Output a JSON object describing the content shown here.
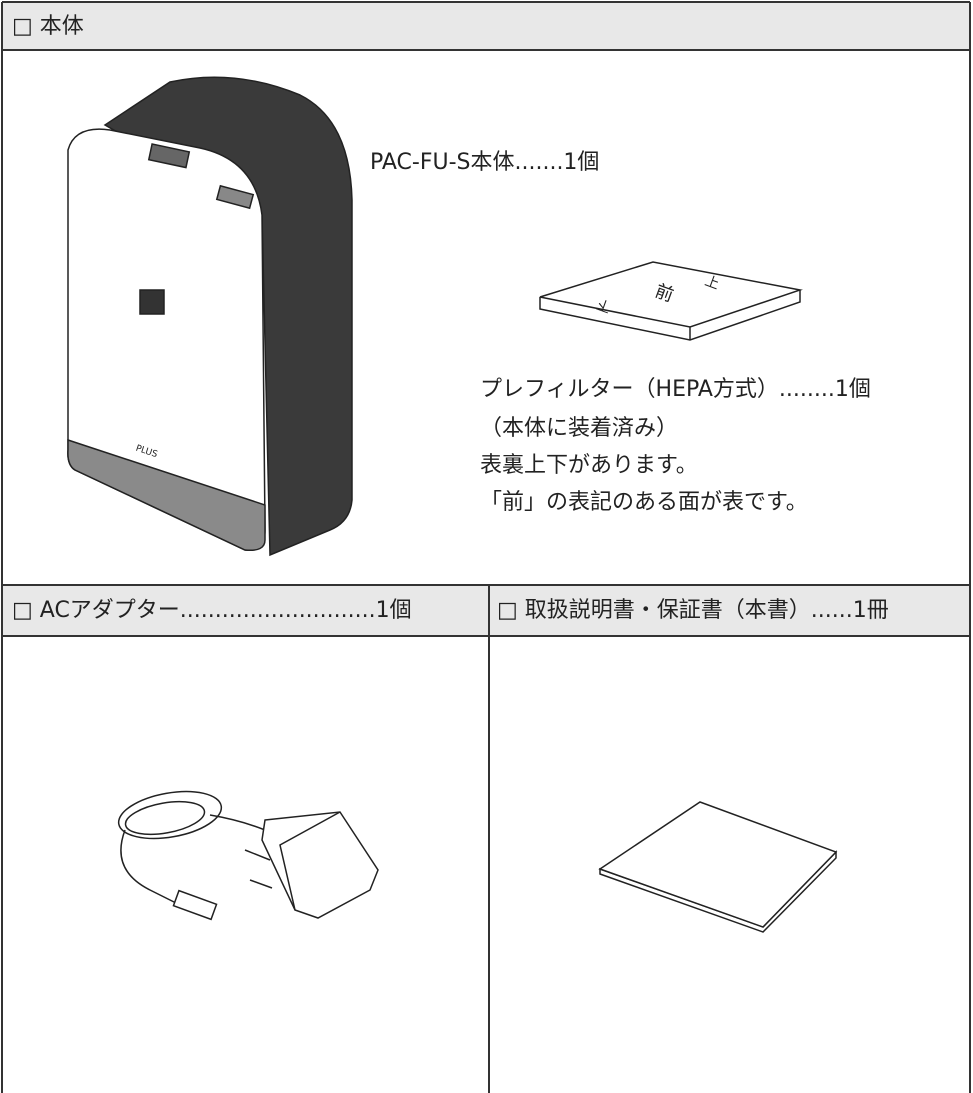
{
  "main": {
    "title": "□ 本体",
    "unit_label": "PAC-FU-S本体.......1個",
    "unit_brand": "PLUS",
    "filter_marks": [
      "前",
      "上",
      "下"
    ],
    "filter_lines": [
      "プレフィルター（HEPA方式）........1個",
      "（本体に装着済み）",
      "表裏上下があります。",
      "「前」の表記のある面が表です。"
    ]
  },
  "adapter": {
    "title": "□ ACアダプター............................1個"
  },
  "manual": {
    "title": "□ 取扱説明書・保証書（本書）......1冊"
  }
}
